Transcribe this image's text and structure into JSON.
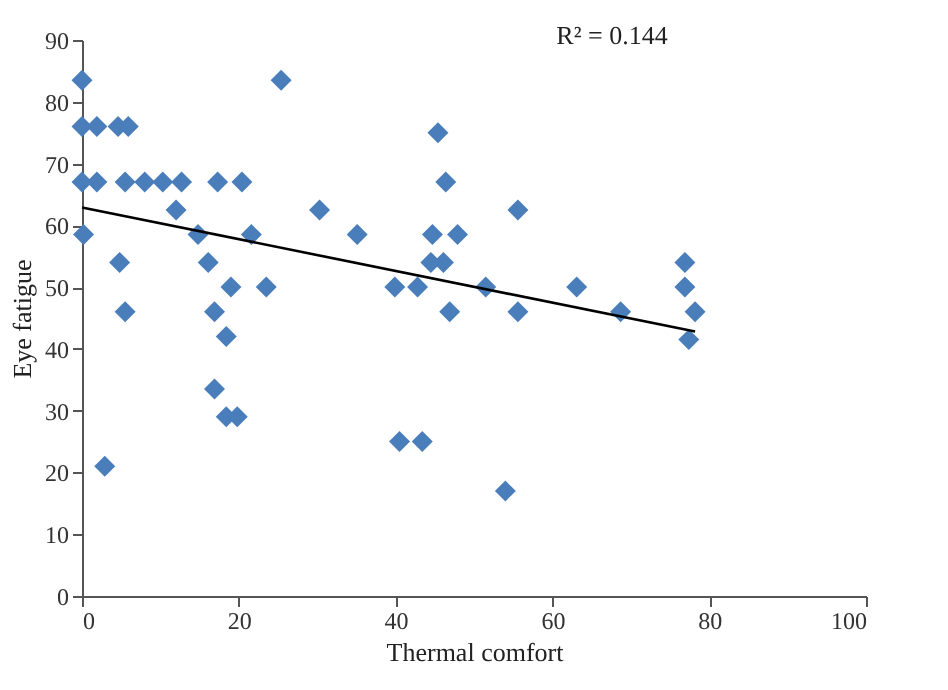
{
  "chart_data": {
    "type": "scatter",
    "xlabel": "Thermal comfort",
    "ylabel": "Eye fatigue",
    "annotations": [
      "R² = 0.144"
    ],
    "marker": "diamond",
    "grid": false,
    "xlim": [
      0,
      100
    ],
    "xticks": [
      0,
      20,
      40,
      60,
      80,
      100
    ],
    "ylim": [
      0,
      90
    ],
    "yticks": [
      0,
      10,
      20,
      30,
      40,
      50,
      60,
      70,
      80,
      90
    ],
    "series": [
      {
        "color": "#4a7ebb",
        "x": [
          0,
          0,
          1.9,
          4.6,
          5.9,
          0,
          1.9,
          5.5,
          8,
          10.3,
          12.7,
          17.3,
          20.4,
          12,
          0.2,
          14.8,
          21.6,
          4.8,
          16.1,
          5.5,
          16.9,
          19,
          23.5,
          18.4,
          16.9,
          18.4,
          19.8,
          2.9,
          25.4,
          30.3,
          35.1,
          39.9,
          42.8,
          40.5,
          43.4,
          45.4,
          46.4,
          44.7,
          47.9,
          44.5,
          46.1,
          46.9,
          55.6,
          51.5,
          55.6,
          63.1,
          68.7,
          76.9,
          76.9,
          78.2,
          77.4,
          54
        ],
        "values": [
          83.5,
          76,
          76,
          76,
          76,
          67,
          67,
          67,
          67,
          67,
          67,
          67,
          67,
          62.5,
          58.5,
          58.5,
          58.5,
          54,
          54,
          46,
          46,
          50,
          50,
          42,
          33.5,
          29,
          29,
          21,
          83.5,
          62.5,
          58.5,
          50,
          50,
          25,
          25,
          75,
          67,
          58.5,
          58.5,
          54,
          54,
          46,
          62.5,
          50,
          46,
          50,
          46,
          54,
          50,
          46,
          41.5,
          17
        ]
      },
      {
        "type": "line",
        "marker": "none",
        "color": "#000000",
        "x": [
          0,
          78.2
        ],
        "values": [
          62.9,
          42.8
        ]
      }
    ]
  }
}
